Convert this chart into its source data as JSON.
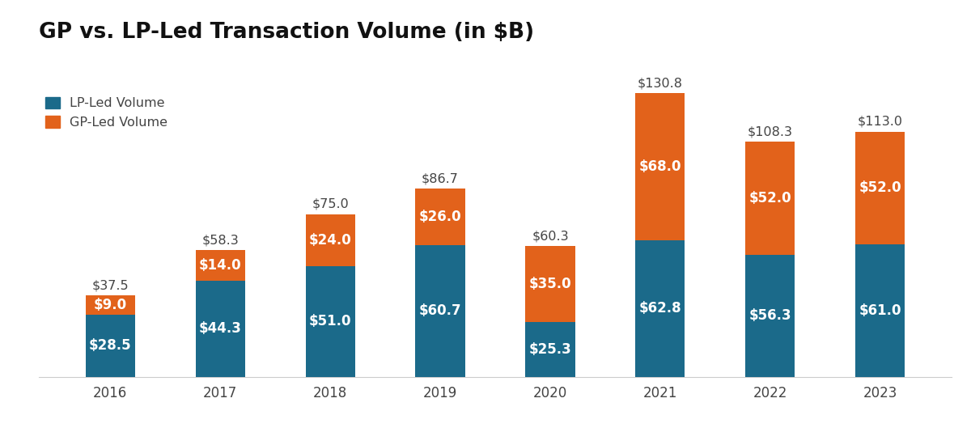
{
  "years": [
    "2016",
    "2017",
    "2018",
    "2019",
    "2020",
    "2021",
    "2022",
    "2023"
  ],
  "lp_led": [
    28.5,
    44.3,
    51.0,
    60.7,
    25.3,
    62.8,
    56.3,
    61.0
  ],
  "gp_led": [
    9.0,
    14.0,
    24.0,
    26.0,
    35.0,
    68.0,
    52.0,
    52.0
  ],
  "totals": [
    37.5,
    58.3,
    75.0,
    86.7,
    60.3,
    130.8,
    108.3,
    113.0
  ],
  "lp_color": "#1b6a8a",
  "gp_color": "#e2621b",
  "title": "GP vs. LP-Led Transaction Volume (in $B)",
  "title_fontsize": 19,
  "label_fontsize": 12,
  "total_fontsize": 11.5,
  "xtick_fontsize": 12,
  "legend_lp": "LP-Led Volume",
  "legend_gp": "GP-Led Volume",
  "background_color": "#ffffff",
  "bar_width": 0.45
}
